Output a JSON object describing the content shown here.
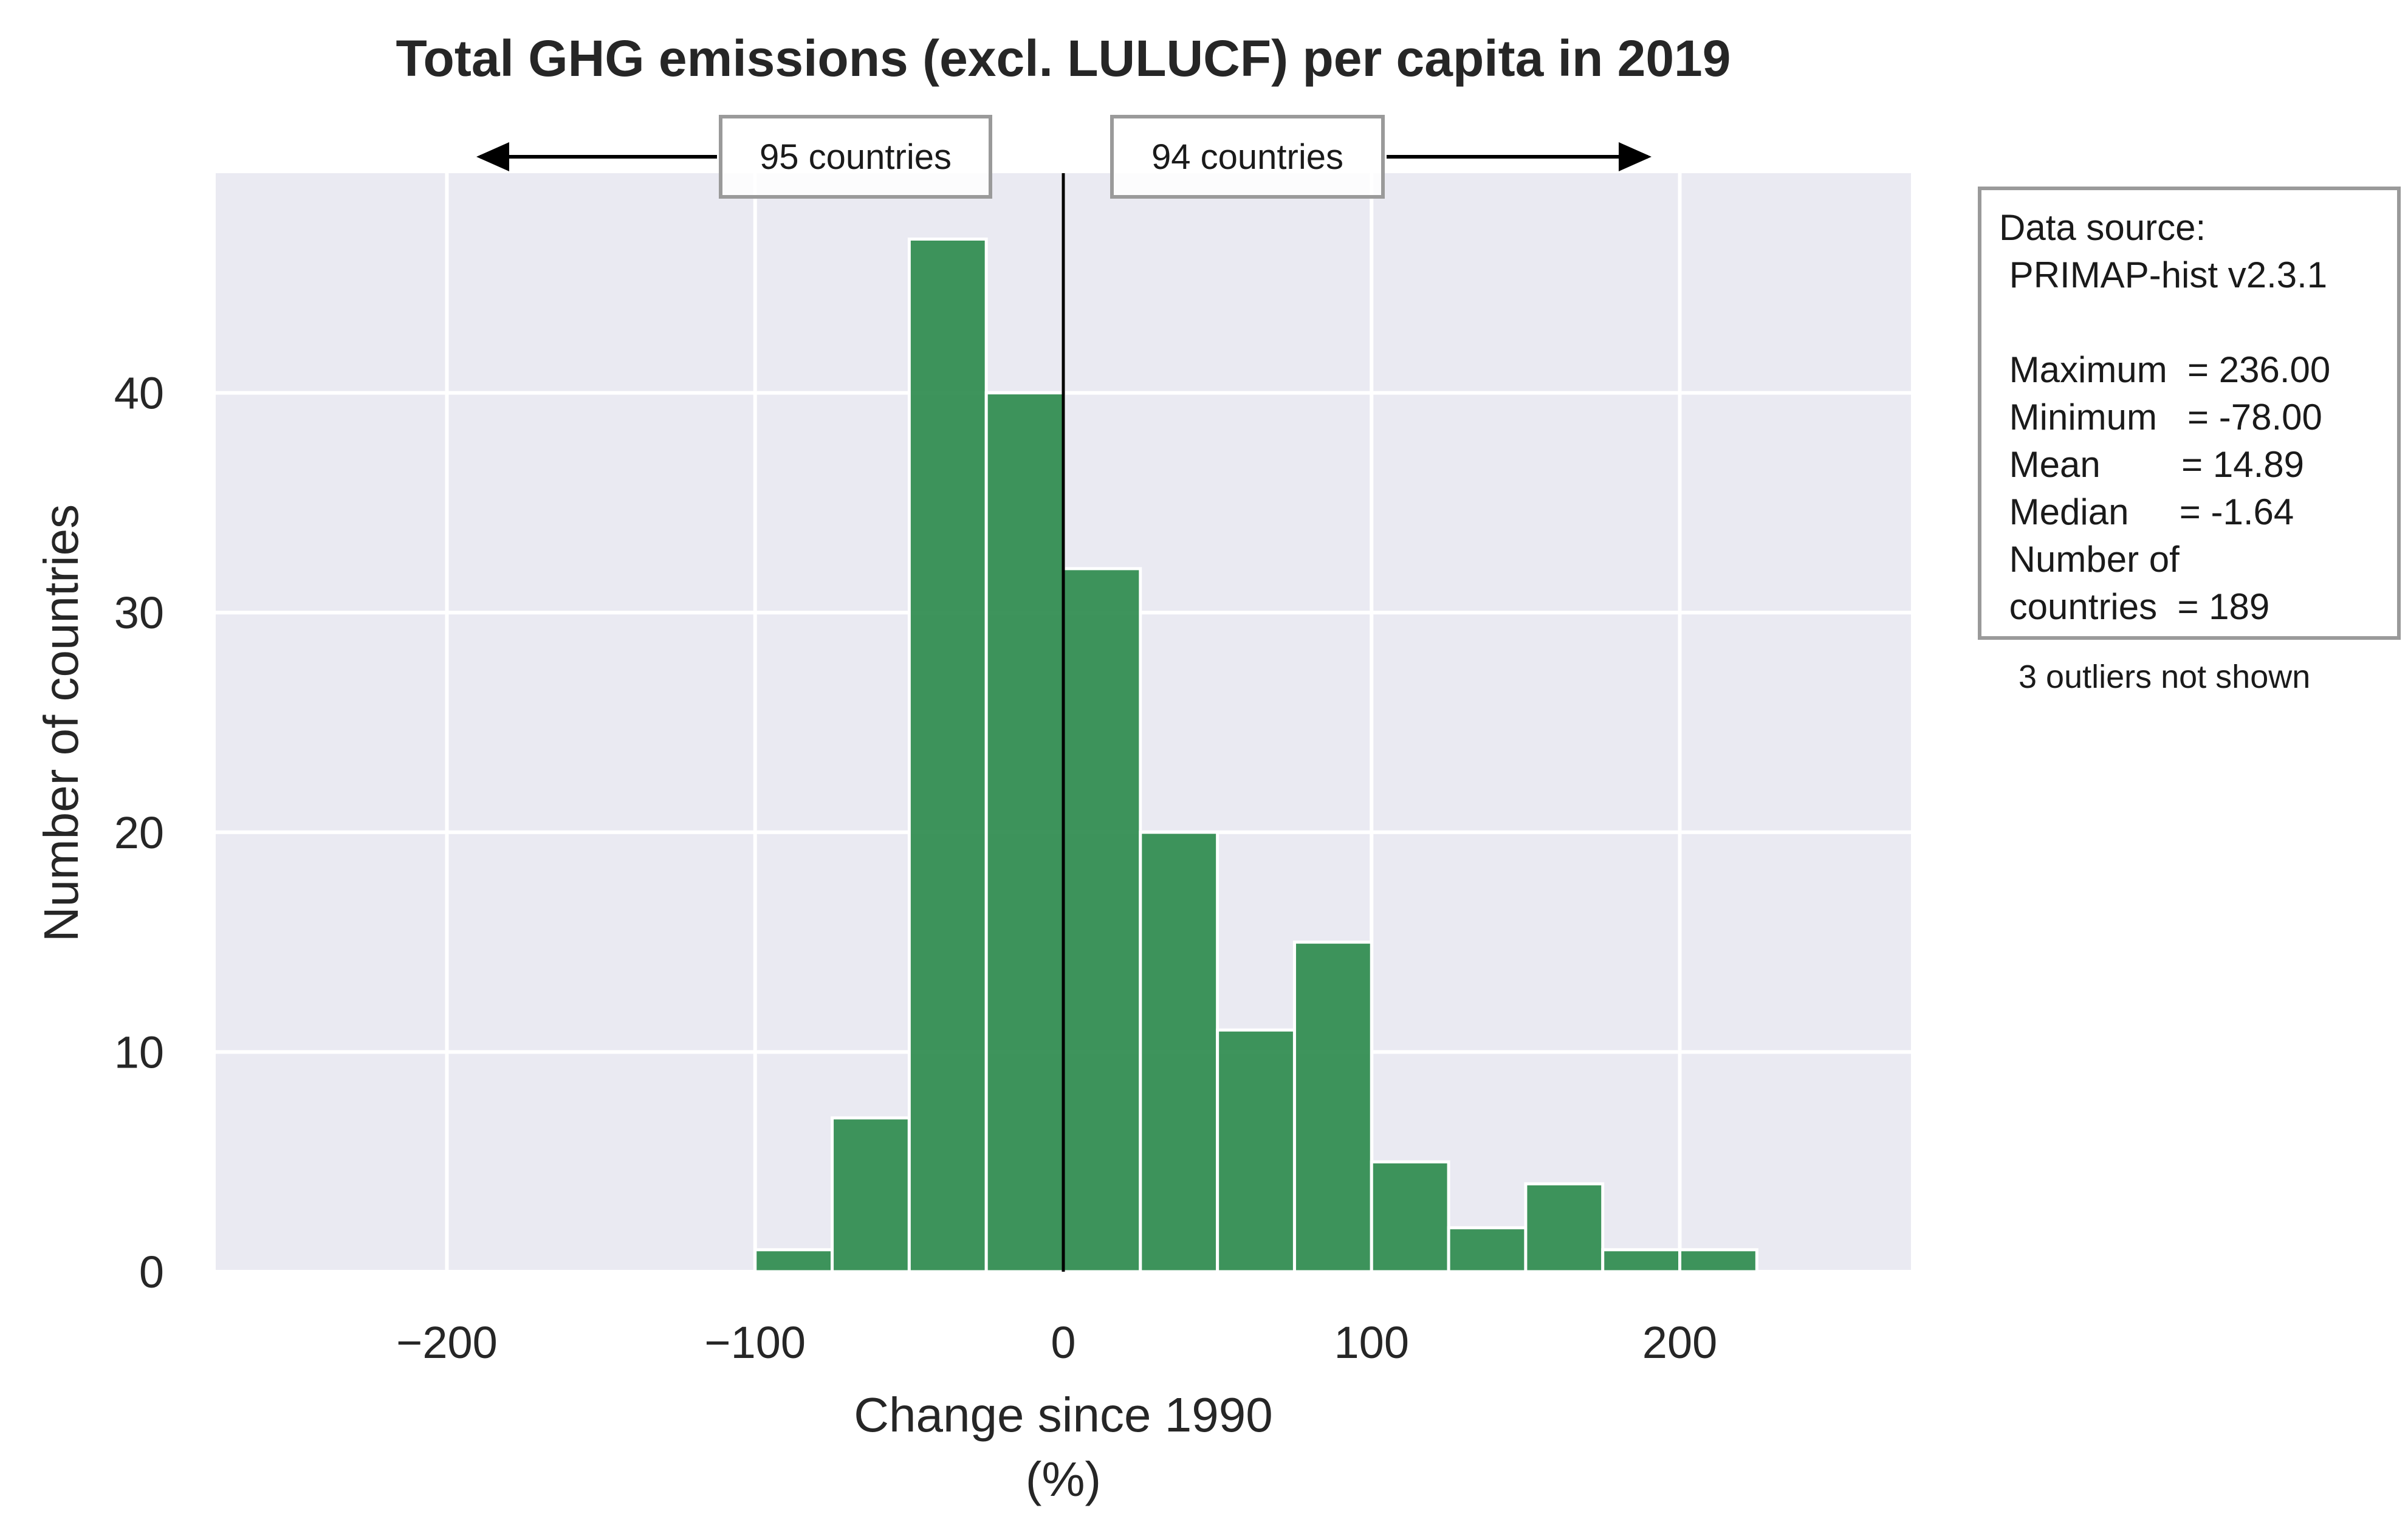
{
  "chart_data": {
    "type": "bar",
    "title": "Total GHG emissions (excl. LULUCF) per capita in 2019",
    "xlabel": "Change since 1990",
    "xlabel_unit": "(%)",
    "ylabel": "Number of countries",
    "xlim": [
      -275,
      275
    ],
    "ylim": [
      0,
      50
    ],
    "x_ticks": [
      -200,
      -100,
      0,
      100,
      200
    ],
    "x_tick_labels": [
      "−200",
      "−100",
      "0",
      "100",
      "200"
    ],
    "y_ticks": [
      0,
      10,
      20,
      30,
      40
    ],
    "y_tick_labels": [
      "0",
      "10",
      "20",
      "30",
      "40"
    ],
    "grid": true,
    "bar_color": "#2e8b4e",
    "plot_background": "#eaeaf2",
    "reference_line_x": 0,
    "bins": [
      {
        "from": -100,
        "to": -75,
        "count": 1
      },
      {
        "from": -75,
        "to": -50,
        "count": 7
      },
      {
        "from": -50,
        "to": -25,
        "count": 47
      },
      {
        "from": -25,
        "to": 0,
        "count": 40
      },
      {
        "from": 0,
        "to": 25,
        "count": 32
      },
      {
        "from": 25,
        "to": 50,
        "count": 20
      },
      {
        "from": 50,
        "to": 75,
        "count": 11
      },
      {
        "from": 75,
        "to": 100,
        "count": 15
      },
      {
        "from": 100,
        "to": 125,
        "count": 5
      },
      {
        "from": 125,
        "to": 150,
        "count": 2
      },
      {
        "from": 150,
        "to": 175,
        "count": 4
      },
      {
        "from": 175,
        "to": 200,
        "count": 1
      },
      {
        "from": 200,
        "to": 225,
        "count": 1
      }
    ],
    "annotations": {
      "left_count": "95 countries",
      "right_count": "94 countries"
    },
    "stats_box": {
      "lines": [
        "Data source:",
        " PRIMAP-hist v2.3.1",
        "",
        " Maximum  = 236.00",
        " Minimum   = -78.00",
        " Mean        = 14.89",
        " Median     = -1.64",
        " Number of",
        " countries  = 189"
      ]
    },
    "outlier_note": "3 outliers not shown"
  }
}
